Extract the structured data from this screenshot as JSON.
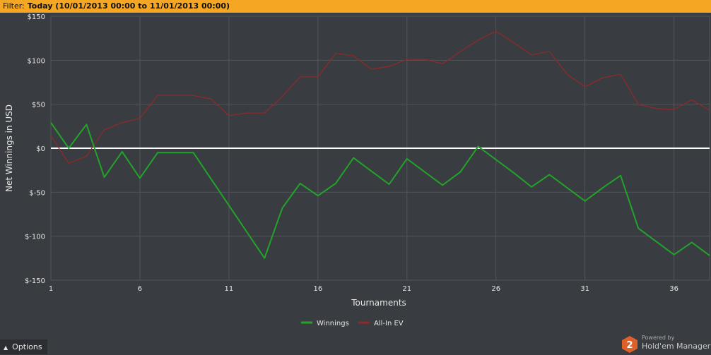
{
  "filter": {
    "prefix": "Filter:",
    "value": "Today (10/01/2013 00:00 to 11/01/2013 00:00)"
  },
  "options_button": {
    "label": "Options",
    "icon": "caret-up-icon"
  },
  "branding": {
    "powered": "Powered by",
    "name": "Hold'em Manager",
    "logo_text": "2"
  },
  "colors": {
    "background": "#393c40",
    "filter_bar": "#f5a623",
    "grid": "#52565b",
    "zero_line": "#ffffff",
    "winnings": "#22a32a",
    "allin_ev": "#8e2a2a",
    "logo": "#e0602a"
  },
  "chart_data": {
    "type": "line",
    "xlabel": "Tournaments",
    "ylabel": "Net Winnings in USD",
    "xlim": [
      1,
      38
    ],
    "ylim": [
      -150,
      150
    ],
    "x_ticks": [
      1,
      6,
      11,
      16,
      21,
      26,
      31,
      36
    ],
    "x_tick_labels": [
      "1",
      "6",
      "11",
      "16",
      "21",
      "26",
      "31",
      "36"
    ],
    "y_ticks": [
      150,
      100,
      50,
      0,
      -50,
      -100,
      -150
    ],
    "y_tick_labels": [
      "$150",
      "$100",
      "$50",
      "$0",
      "$-50",
      "$-100",
      "$-150"
    ],
    "grid": true,
    "legend_position": "bottom-center",
    "x": [
      1,
      2,
      3,
      4,
      5,
      6,
      7,
      8,
      9,
      10,
      11,
      12,
      13,
      14,
      15,
      16,
      17,
      18,
      19,
      20,
      21,
      22,
      23,
      24,
      25,
      26,
      27,
      28,
      29,
      30,
      31,
      32,
      33,
      34,
      35,
      36,
      37,
      38
    ],
    "series": [
      {
        "name": "Winnings",
        "values": [
          29,
          0,
          27,
          -33,
          -4,
          -34,
          -5,
          -5,
          -5,
          -35,
          -65,
          -95,
          -125,
          -68,
          -40,
          -54,
          -40,
          -11,
          -26,
          -41,
          -12,
          -27,
          -42,
          -27,
          2,
          -13,
          -28,
          -44,
          -30,
          -45,
          -60,
          -45,
          -31,
          -91,
          -106,
          -121,
          -107,
          -122
        ]
      },
      {
        "name": "All-In EV",
        "values": [
          14,
          -17,
          -9,
          21,
          29,
          34,
          60,
          60,
          60,
          56,
          37,
          40,
          40,
          59,
          81,
          81,
          108,
          105,
          90,
          93,
          101,
          101,
          96,
          110,
          123,
          133,
          120,
          106,
          110,
          84,
          70,
          80,
          84,
          50,
          45,
          44,
          55,
          43
        ]
      }
    ]
  }
}
